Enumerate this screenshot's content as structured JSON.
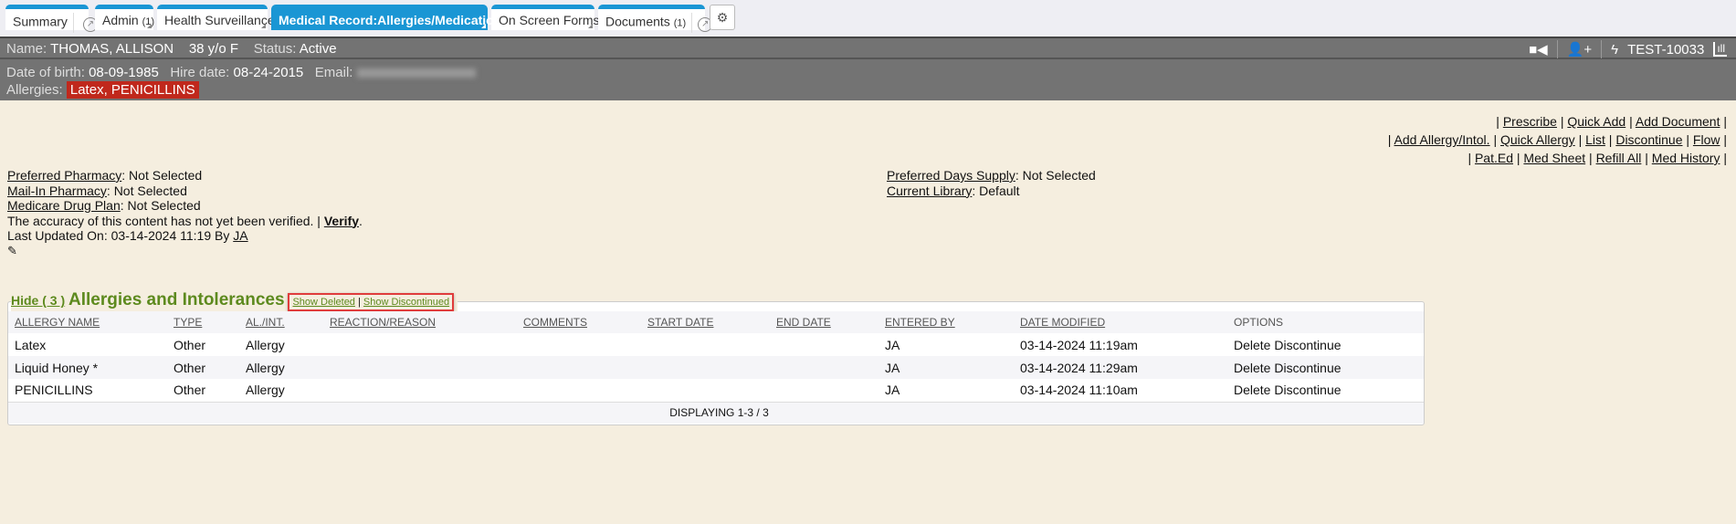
{
  "tabs": [
    {
      "label": "Summary"
    },
    {
      "label": "Admin",
      "count": "(1)"
    },
    {
      "label": "Health Surveillance"
    },
    {
      "label": "Medical Record:Allergies/Medications",
      "active": true
    },
    {
      "label": "On Screen Forms"
    },
    {
      "label": "Documents",
      "count": "(1)"
    }
  ],
  "header": {
    "name_label": "Name:",
    "name": "THOMAS, ALLISON",
    "age": "38 y/o F",
    "status_label": "Status:",
    "status": "Active",
    "dob_label": "Date of birth:",
    "dob": "08-09-1985",
    "hire_label": "Hire date:",
    "hire": "08-24-2015",
    "email_label": "Email:",
    "allergies_label": "Allergies:",
    "allergies": "Latex, PENICILLINS",
    "patient_id": "TEST-10033"
  },
  "links": {
    "row1": [
      "Prescribe",
      "Quick Add",
      "Add Document"
    ],
    "row2": [
      "Add Allergy/Intol.",
      "Quick Allergy",
      "List",
      "Discontinue",
      "Flow"
    ],
    "row3": [
      "Pat.Ed",
      "Med Sheet",
      "Refill All",
      "Med History"
    ]
  },
  "info": {
    "pharmacy_label": "Preferred Pharmacy",
    "pharmacy": ": Not Selected",
    "mail_label": "Mail-In Pharmacy",
    "mail": ": Not Selected",
    "medicare_label": "Medicare Drug Plan",
    "medicare": ": Not Selected",
    "accuracy": "The accuracy of this content has not yet been verified. |",
    "verify": "Verify",
    "updated": "Last Updated On: 03-14-2024 11:19 By",
    "updated_by": "JA",
    "days_label": "Preferred Days Supply",
    "days": ": Not Selected",
    "library_label": "Current Library",
    "library": ": Default"
  },
  "section": {
    "hide": "Hide ( 3 )",
    "title": "Allergies and Intolerances",
    "show_deleted": "Show Deleted",
    "show_discontinued": "Show Discontinued"
  },
  "table": {
    "columns": [
      "ALLERGY NAME",
      "TYPE",
      "AL./INT.",
      "REACTION/REASON",
      "COMMENTS",
      "START DATE",
      "END DATE",
      "ENTERED BY",
      "DATE MODIFIED",
      "OPTIONS"
    ],
    "rows": [
      [
        "Latex",
        "Other",
        "Allergy",
        "",
        "",
        "",
        "",
        "JA",
        "03-14-2024 11:19am"
      ],
      [
        "Liquid Honey *",
        "Other",
        "Allergy",
        "",
        "",
        "",
        "",
        "JA",
        "03-14-2024 11:29am"
      ],
      [
        "PENICILLINS",
        "Other",
        "Allergy",
        "",
        "",
        "",
        "",
        "JA",
        "03-14-2024 11:10am"
      ]
    ],
    "delete_label": "Delete",
    "discontinue_label": "Discontinue",
    "footer": "DISPLAYING 1-3 / 3"
  }
}
